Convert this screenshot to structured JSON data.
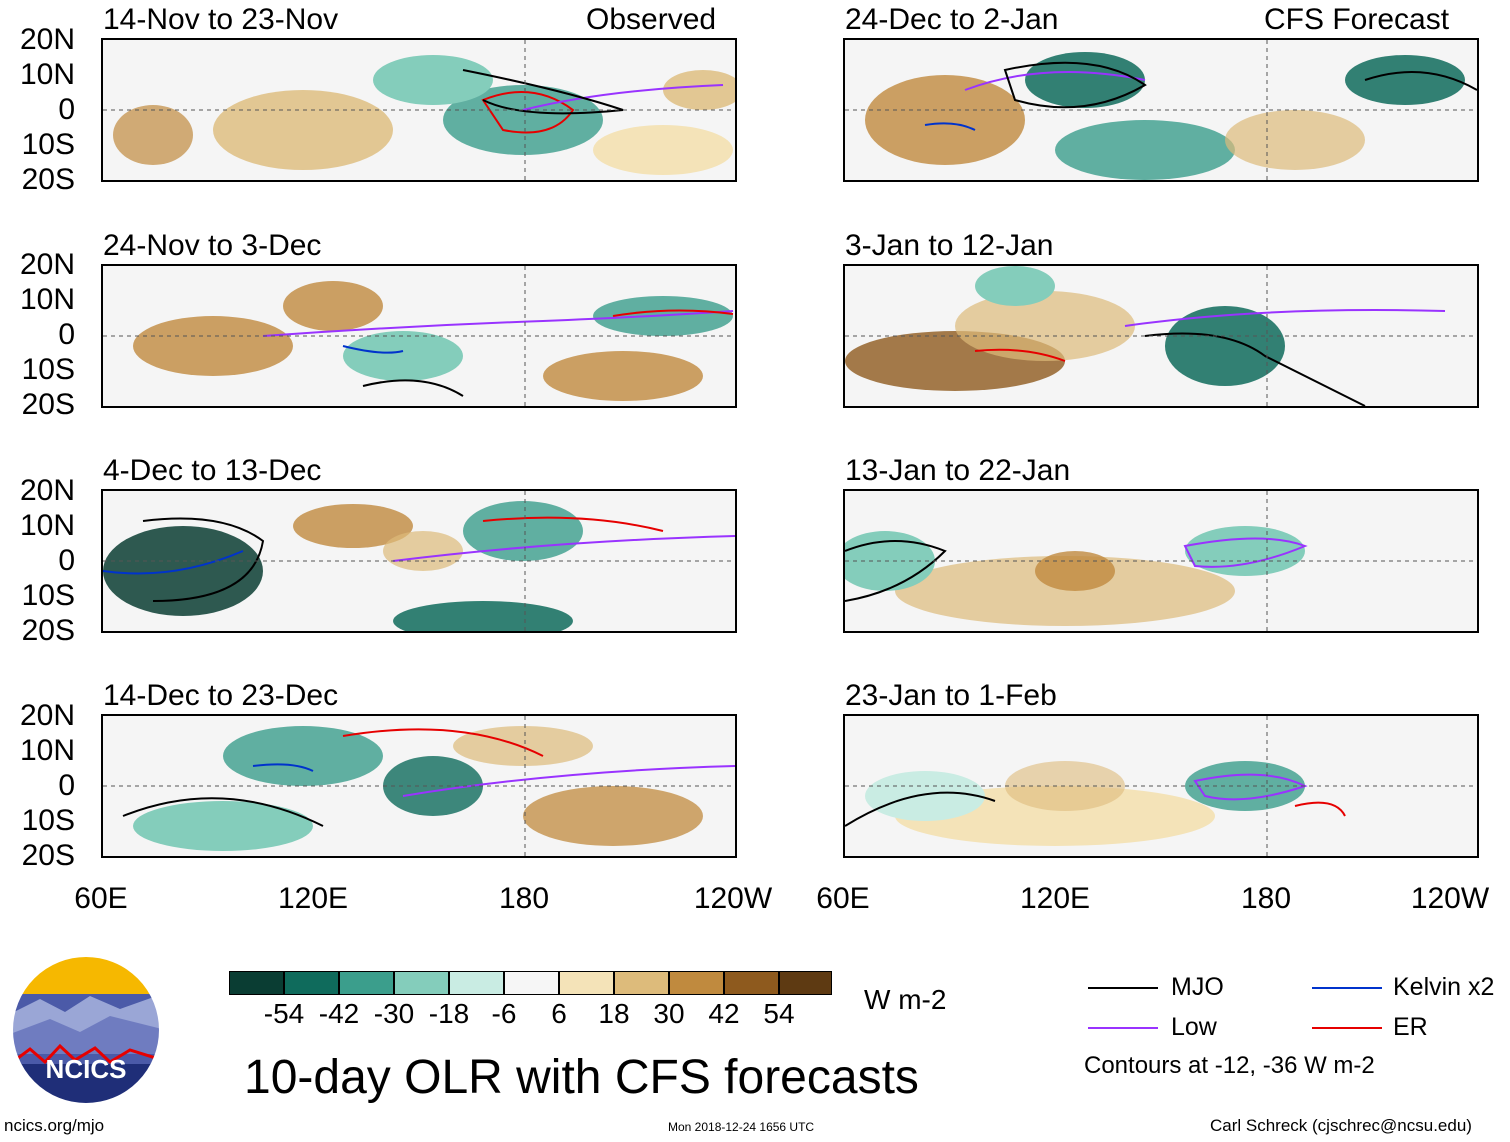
{
  "title": "10-day OLR with CFS forecasts",
  "header_left": "Observed",
  "header_right": "CFS Forecast",
  "lat_labels": [
    "20N",
    "10N",
    "0",
    "10S",
    "20S"
  ],
  "lon_labels": [
    "60E",
    "120E",
    "180",
    "120W"
  ],
  "panels_observed": [
    "14-Nov to 23-Nov",
    "24-Nov to 3-Dec",
    "4-Dec to 13-Dec",
    "14-Dec to 23-Dec"
  ],
  "panels_forecast": [
    "24-Dec to 2-Jan",
    "3-Jan to 12-Jan",
    "13-Jan to 22-Jan",
    "23-Jan to 1-Feb"
  ],
  "colorbar": {
    "ticks": [
      "-54",
      "-42",
      "-30",
      "-18",
      "-6",
      "6",
      "18",
      "30",
      "42",
      "54"
    ],
    "colors": [
      "#0a3d33",
      "#0f6b5c",
      "#3b9e8c",
      "#84cdbb",
      "#c9ece3",
      "#f6f6f6",
      "#f4e3b8",
      "#ddbb7b",
      "#c08a3e",
      "#8e5a1e",
      "#5e3a12"
    ],
    "units": "W m-2"
  },
  "legend": {
    "mjo": "MJO",
    "low": "Low",
    "kelvin": "Kelvin x2",
    "er": "ER",
    "colors": {
      "mjo": "#000000",
      "low": "#9933ff",
      "kelvin": "#0033cc",
      "er": "#e60000"
    },
    "contours_note": "Contours at -12, -36 W m-2"
  },
  "logo_text": "NCICS",
  "footer": {
    "url": "ncics.org/mjo",
    "timestamp": "Mon 2018-12-24 1656 UTC",
    "author": "Carl Schreck (cjschrec@ncsu.edu)"
  }
}
